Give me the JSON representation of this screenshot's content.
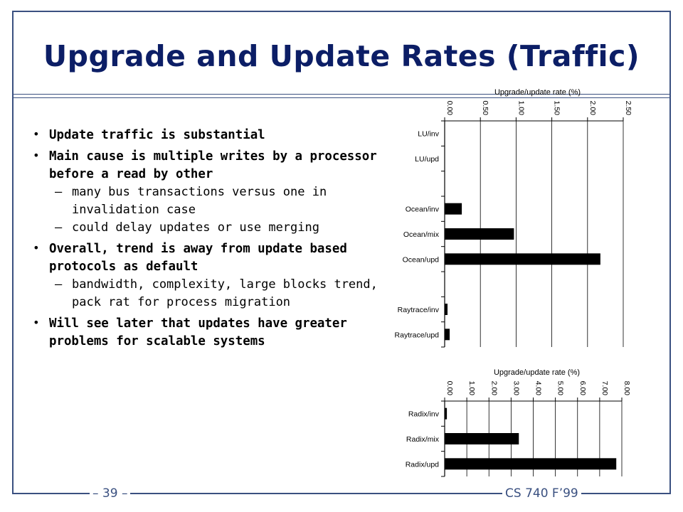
{
  "title": "Upgrade and Update Rates (Traffic)",
  "bullets": [
    {
      "text": "Update traffic is substantial",
      "sub": []
    },
    {
      "text": "Main cause is multiple writes by a processor before a read by other",
      "sub": [
        "many bus transactions versus one in invalidation case",
        "could delay updates or use merging"
      ]
    },
    {
      "text": "Overall, trend is away from update based protocols as default",
      "sub": [
        "bandwidth, complexity, large blocks trend, pack rat for process migration"
      ]
    },
    {
      "text": "Will see later that updates have greater problems for scalable systems",
      "sub": []
    }
  ],
  "footer": {
    "left": "– 39 –",
    "right": "CS 740 F’99"
  },
  "chart_data": [
    {
      "type": "bar",
      "orientation": "horizontal",
      "title": "Upgrade/update rate (%)",
      "categories": [
        "LU/inv",
        "LU/upd",
        "Ocean/inv",
        "Ocean/mix",
        "Ocean/upd",
        "Raytrace/inv",
        "Raytrace/upd"
      ],
      "slots": [
        1,
        2,
        4,
        5,
        6,
        8,
        9
      ],
      "slot_count": 9,
      "values": [
        0.0,
        0.0,
        0.24,
        0.97,
        2.18,
        0.04,
        0.07
      ],
      "xlim": [
        0,
        2.5
      ],
      "ticks": [
        "0.00",
        "0.50",
        "1.00",
        "1.50",
        "2.00",
        "2.50"
      ],
      "tick_values": [
        0,
        0.5,
        1.0,
        1.5,
        2.0,
        2.5
      ],
      "grid": true,
      "bar_color": "#000000"
    },
    {
      "type": "bar",
      "orientation": "horizontal",
      "title": "Upgrade/update rate (%)",
      "categories": [
        "Radix/inv",
        "Radix/mix",
        "Radix/upd"
      ],
      "slots": [
        1,
        2,
        3
      ],
      "slot_count": 3,
      "values": [
        0.1,
        3.35,
        7.75
      ],
      "xlim": [
        0,
        8
      ],
      "ticks": [
        "0.00",
        "1.00",
        "2.00",
        "3.00",
        "4.00",
        "5.00",
        "6.00",
        "7.00",
        "8.00"
      ],
      "tick_values": [
        0,
        1,
        2,
        3,
        4,
        5,
        6,
        7,
        8
      ],
      "grid": true,
      "bar_color": "#000000"
    }
  ]
}
